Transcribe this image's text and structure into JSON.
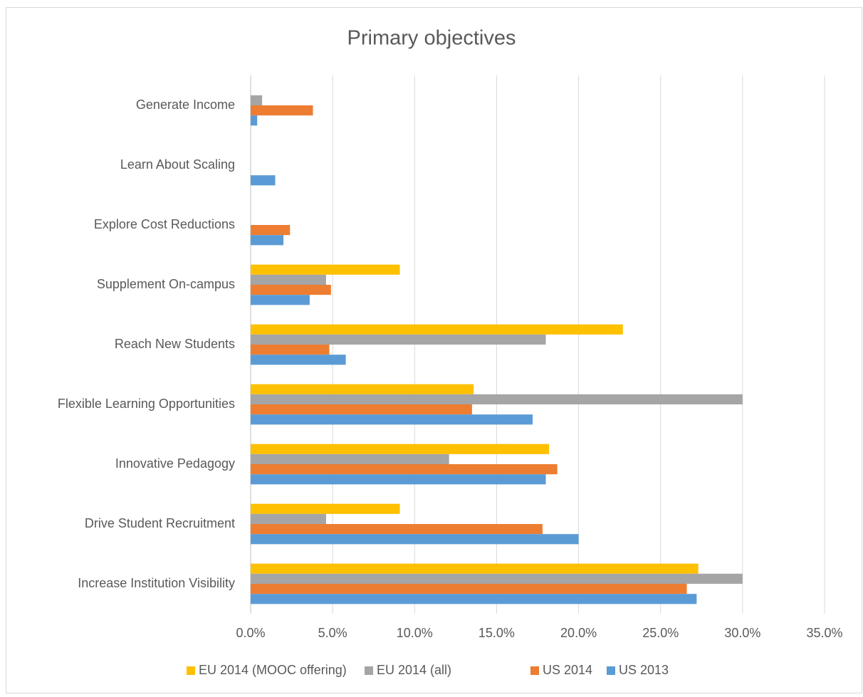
{
  "chart_data": {
    "type": "bar",
    "orientation": "horizontal",
    "title": "Primary objectives",
    "categories": [
      "Increase Institution Visibility",
      "Drive Student Recruitment",
      "Innovative Pedagogy",
      "Flexible Learning Opportunities",
      "Reach New Students",
      "Supplement On-campus",
      "Explore Cost Reductions",
      "Learn About Scaling",
      "Generate Income"
    ],
    "series": [
      {
        "name": "EU 2014 (MOOC offering)",
        "color": "#FFC000",
        "values": [
          27.3,
          9.1,
          18.2,
          13.6,
          22.7,
          9.1,
          null,
          null,
          null
        ]
      },
      {
        "name": "EU 2014 (all)",
        "color": "#A5A5A5",
        "values": [
          30.0,
          4.6,
          12.1,
          30.0,
          18.0,
          4.6,
          null,
          null,
          0.7
        ]
      },
      {
        "name": "US 2014",
        "color": "#ED7D31",
        "values": [
          26.6,
          17.8,
          18.7,
          13.5,
          4.8,
          4.9,
          2.4,
          null,
          3.8
        ]
      },
      {
        "name": "US 2013",
        "color": "#5B9BD5",
        "values": [
          27.2,
          20.0,
          18.0,
          17.2,
          5.8,
          3.6,
          2.0,
          1.5,
          0.4
        ]
      }
    ],
    "xlim": [
      0,
      35
    ],
    "xticks": [
      {
        "value": 0,
        "label": "0.0%"
      },
      {
        "value": 5,
        "label": "5.0%"
      },
      {
        "value": 10,
        "label": "10.0%"
      },
      {
        "value": 15,
        "label": "15.0%"
      },
      {
        "value": 20,
        "label": "20.0%"
      },
      {
        "value": 25,
        "label": "25.0%"
      },
      {
        "value": 30,
        "label": "30.0%"
      },
      {
        "value": 35,
        "label": "35.0%"
      }
    ],
    "grid": true,
    "legend": "bottom"
  }
}
